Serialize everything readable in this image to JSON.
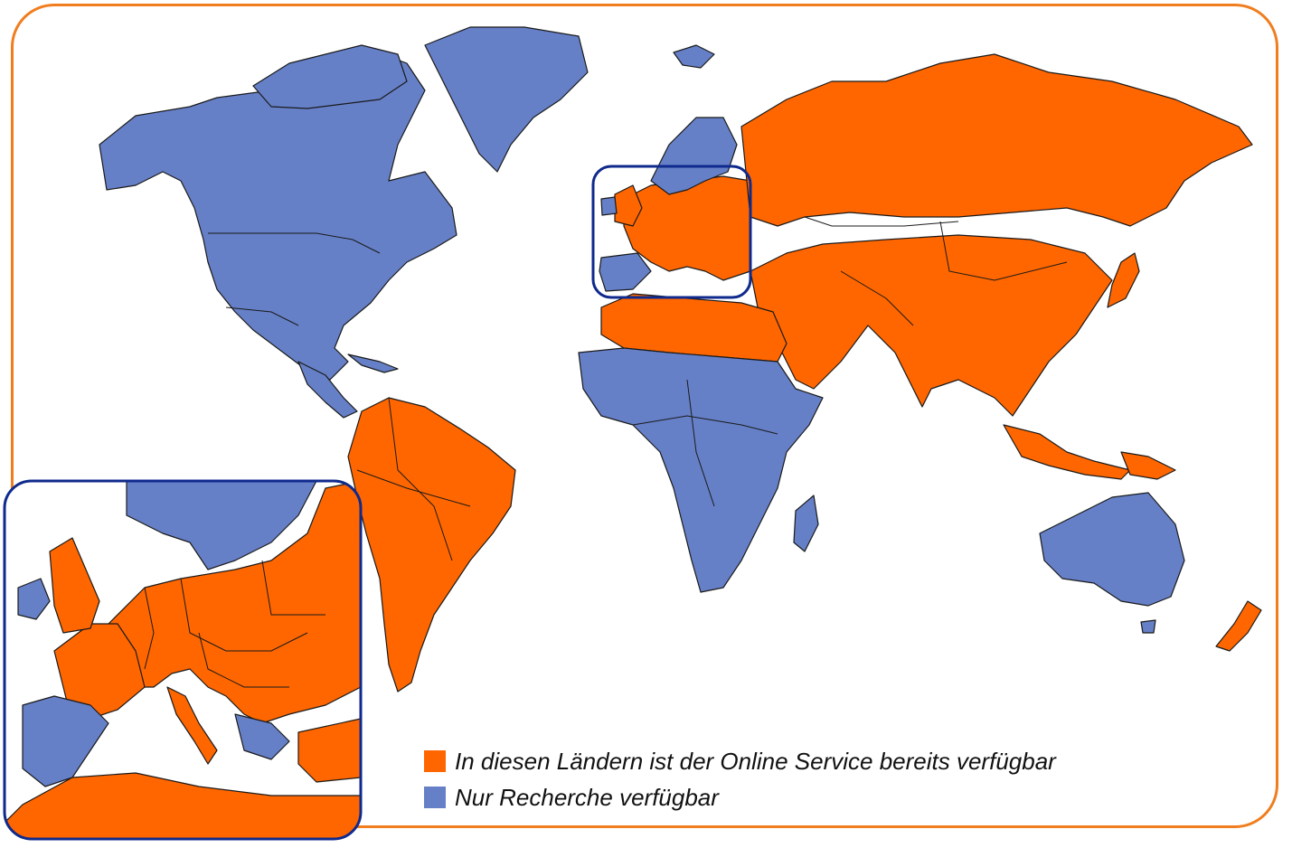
{
  "colors": {
    "available": "#ff6600",
    "research_only": "#6680c8",
    "frame": "#f07d1e",
    "highlight": "#0f2a8c"
  },
  "legend": [
    {
      "label": "In diesen Ländern ist der Online Service bereits verfügbar",
      "color": "#ff6600"
    },
    {
      "label": "Nur Recherche verfügbar",
      "color": "#6680c8"
    }
  ]
}
